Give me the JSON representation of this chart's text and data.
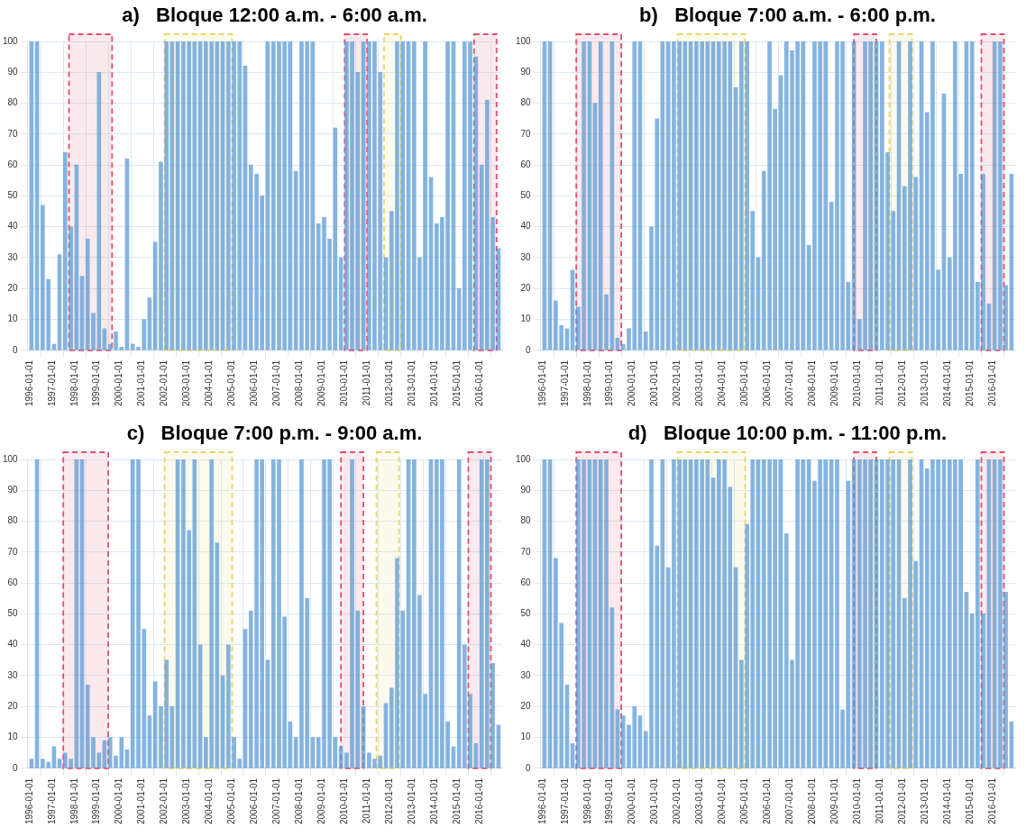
{
  "chart_data": [
    {
      "type": "bar",
      "title": "a)   Bloque 12:00 a.m. - 6:00 a.m.",
      "color": "#5b9bd5",
      "grid": true,
      "xlim": [
        "1995-12-01",
        "2016-12-31"
      ],
      "ylim": [
        0,
        100
      ],
      "yticks": [
        0,
        10,
        20,
        30,
        40,
        50,
        60,
        70,
        80,
        90,
        100
      ],
      "xticks": [
        "1996-01-01",
        "1997-01-01",
        "1998-01-01",
        "1999-01-01",
        "2000-01-01",
        "2001-01-01",
        "2002-01-01",
        "2003-01-01",
        "2004-01-01",
        "2005-01-01",
        "2006-01-01",
        "2007-01-01",
        "2008-01-01",
        "2009-01-01",
        "2010-01-01",
        "2011-01-01",
        "2012-01-01",
        "2013-01-01",
        "2014-01-01",
        "2015-01-01",
        "2016-01-01"
      ],
      "x": [
        "1996-02",
        "1996-05",
        "1996-08",
        "1996-11",
        "1997-02",
        "1997-05",
        "1997-08",
        "1997-11",
        "1998-02",
        "1998-05",
        "1998-08",
        "1998-11",
        "1999-02",
        "1999-05",
        "1999-08",
        "1999-11",
        "2000-02",
        "2000-05",
        "2000-08",
        "2000-11",
        "2001-02",
        "2001-05",
        "2001-08",
        "2001-11",
        "2002-02",
        "2002-05",
        "2002-08",
        "2002-11",
        "2003-02",
        "2003-05",
        "2003-08",
        "2003-11",
        "2004-02",
        "2004-05",
        "2004-08",
        "2004-11",
        "2005-02",
        "2005-05",
        "2005-08",
        "2005-11",
        "2006-02",
        "2006-05",
        "2006-08",
        "2006-11",
        "2007-02",
        "2007-05",
        "2007-08",
        "2007-11",
        "2008-02",
        "2008-05",
        "2008-08",
        "2008-11",
        "2009-02",
        "2009-05",
        "2009-08",
        "2009-11",
        "2010-02",
        "2010-05",
        "2010-08",
        "2010-11",
        "2011-02",
        "2011-05",
        "2011-08",
        "2011-11",
        "2012-02",
        "2012-05",
        "2012-08",
        "2012-11",
        "2013-02",
        "2013-05",
        "2013-08",
        "2013-11",
        "2014-02",
        "2014-05",
        "2014-08",
        "2014-11",
        "2015-02",
        "2015-05",
        "2015-08",
        "2015-11",
        "2016-02",
        "2016-05",
        "2016-08",
        "2016-11"
      ],
      "values": [
        100,
        100,
        47,
        23,
        2,
        31,
        64,
        40,
        60,
        24,
        36,
        12,
        90,
        7,
        2,
        6,
        1,
        62,
        2,
        1,
        10,
        17,
        35,
        61,
        100,
        100,
        100,
        100,
        100,
        100,
        100,
        100,
        100,
        100,
        100,
        100,
        100,
        100,
        92,
        60,
        57,
        50,
        100,
        100,
        100,
        100,
        100,
        58,
        100,
        100,
        100,
        41,
        43,
        36,
        72,
        30,
        100,
        100,
        90,
        100,
        100,
        100,
        90,
        30,
        45,
        100,
        100,
        100,
        100,
        30,
        100,
        56,
        41,
        43,
        100,
        100,
        20,
        100,
        100,
        95,
        60,
        81,
        43,
        33
      ],
      "bands": [
        {
          "axis": "x",
          "from": "1997-10-01",
          "to": "1999-09-01",
          "color": "#e0506a"
        },
        {
          "axis": "x",
          "from": "2002-01-01",
          "to": "2005-01-01",
          "color": "#e8d36a"
        },
        {
          "axis": "x",
          "from": "2010-01-01",
          "to": "2011-01-01",
          "color": "#e0506a"
        },
        {
          "axis": "x",
          "from": "2011-10-01",
          "to": "2012-07-01",
          "color": "#e8d36a"
        },
        {
          "axis": "x",
          "from": "2015-10-01",
          "to": "2016-10-01",
          "color": "#e0506a"
        }
      ]
    },
    {
      "type": "bar",
      "title": "b)   Bloque 7:00 a.m. - 6:00 p.m.",
      "color": "#5b9bd5",
      "grid": true,
      "xlim": [
        "1995-12-01",
        "2016-12-31"
      ],
      "ylim": [
        0,
        100
      ],
      "yticks": [
        0,
        10,
        20,
        30,
        40,
        50,
        60,
        70,
        80,
        90,
        100
      ],
      "xticks": [
        "1996-01-01",
        "1997-01-01",
        "1998-01-01",
        "1999-01-01",
        "2000-01-01",
        "2001-01-01",
        "2002-01-01",
        "2003-01-01",
        "2004-01-01",
        "2005-01-01",
        "2006-01-01",
        "2007-01-01",
        "2008-01-01",
        "2009-01-01",
        "2010-01-01",
        "2011-01-01",
        "2012-01-01",
        "2013-01-01",
        "2014-01-01",
        "2015-01-01",
        "2016-01-01"
      ],
      "x": [
        "1996-02",
        "1996-05",
        "1996-08",
        "1996-11",
        "1997-02",
        "1997-05",
        "1997-08",
        "1997-11",
        "1998-02",
        "1998-05",
        "1998-08",
        "1998-11",
        "1999-02",
        "1999-05",
        "1999-08",
        "1999-11",
        "2000-02",
        "2000-05",
        "2000-08",
        "2000-11",
        "2001-02",
        "2001-05",
        "2001-08",
        "2001-11",
        "2002-02",
        "2002-05",
        "2002-08",
        "2002-11",
        "2003-02",
        "2003-05",
        "2003-08",
        "2003-11",
        "2004-02",
        "2004-05",
        "2004-08",
        "2004-11",
        "2005-02",
        "2005-05",
        "2005-08",
        "2005-11",
        "2006-02",
        "2006-05",
        "2006-08",
        "2006-11",
        "2007-02",
        "2007-05",
        "2007-08",
        "2007-11",
        "2008-02",
        "2008-05",
        "2008-08",
        "2008-11",
        "2009-02",
        "2009-05",
        "2009-08",
        "2009-11",
        "2010-02",
        "2010-05",
        "2010-08",
        "2010-11",
        "2011-02",
        "2011-05",
        "2011-08",
        "2011-11",
        "2012-02",
        "2012-05",
        "2012-08",
        "2012-11",
        "2013-02",
        "2013-05",
        "2013-08",
        "2013-11",
        "2014-02",
        "2014-05",
        "2014-08",
        "2014-11",
        "2015-02",
        "2015-05",
        "2015-08",
        "2015-11",
        "2016-02",
        "2016-05",
        "2016-08",
        "2016-11"
      ],
      "values": [
        100,
        100,
        16,
        8,
        7,
        26,
        14,
        100,
        100,
        80,
        100,
        18,
        100,
        4,
        2,
        7,
        100,
        100,
        6,
        40,
        75,
        100,
        100,
        100,
        100,
        100,
        100,
        100,
        100,
        100,
        100,
        100,
        100,
        100,
        85,
        100,
        100,
        45,
        30,
        58,
        100,
        78,
        89,
        100,
        97,
        100,
        100,
        34,
        100,
        100,
        100,
        48,
        100,
        100,
        22,
        100,
        10,
        100,
        100,
        100,
        100,
        64,
        45,
        100,
        53,
        100,
        56,
        100,
        77,
        100,
        26,
        83,
        30,
        100,
        57,
        100,
        100,
        22,
        57,
        15,
        100,
        100,
        21,
        57
      ],
      "bands": [
        {
          "axis": "x",
          "from": "1997-07-01",
          "to": "1999-07-01",
          "color": "#e0506a"
        },
        {
          "axis": "x",
          "from": "2002-01-01",
          "to": "2005-01-01",
          "color": "#e8d36a"
        },
        {
          "axis": "x",
          "from": "2009-11-01",
          "to": "2010-11-01",
          "color": "#e0506a"
        },
        {
          "axis": "x",
          "from": "2011-06-01",
          "to": "2012-06-01",
          "color": "#e8d36a"
        },
        {
          "axis": "x",
          "from": "2015-07-01",
          "to": "2016-07-01",
          "color": "#e0506a"
        }
      ]
    },
    {
      "type": "bar",
      "title": "c)   Bloque 7:00 p.m. - 9:00 a.m.",
      "color": "#5b9bd5",
      "grid": true,
      "xlim": [
        "1995-12-01",
        "2016-12-31"
      ],
      "ylim": [
        0,
        100
      ],
      "yticks": [
        0,
        10,
        20,
        30,
        40,
        50,
        60,
        70,
        80,
        90,
        100
      ],
      "xticks": [
        "1996-01-01",
        "1997-01-01",
        "1998-01-01",
        "1999-01-01",
        "2000-01-01",
        "2001-01-01",
        "2002-01-01",
        "2003-01-01",
        "2004-01-01",
        "2005-01-01",
        "2006-01-01",
        "2007-01-01",
        "2008-01-01",
        "2009-01-01",
        "2010-01-01",
        "2011-01-01",
        "2012-01-01",
        "2013-01-01",
        "2014-01-01",
        "2015-01-01",
        "2016-01-01"
      ],
      "x": [
        "1996-02",
        "1996-05",
        "1996-08",
        "1996-11",
        "1997-02",
        "1997-05",
        "1997-08",
        "1997-11",
        "1998-02",
        "1998-05",
        "1998-08",
        "1998-11",
        "1999-02",
        "1999-05",
        "1999-08",
        "1999-11",
        "2000-02",
        "2000-05",
        "2000-08",
        "2000-11",
        "2001-02",
        "2001-05",
        "2001-08",
        "2001-11",
        "2002-02",
        "2002-05",
        "2002-08",
        "2002-11",
        "2003-02",
        "2003-05",
        "2003-08",
        "2003-11",
        "2004-02",
        "2004-05",
        "2004-08",
        "2004-11",
        "2005-02",
        "2005-05",
        "2005-08",
        "2005-11",
        "2006-02",
        "2006-05",
        "2006-08",
        "2006-11",
        "2007-02",
        "2007-05",
        "2007-08",
        "2007-11",
        "2008-02",
        "2008-05",
        "2008-08",
        "2008-11",
        "2009-02",
        "2009-05",
        "2009-08",
        "2009-11",
        "2010-02",
        "2010-05",
        "2010-08",
        "2010-11",
        "2011-02",
        "2011-05",
        "2011-08",
        "2011-11",
        "2012-02",
        "2012-05",
        "2012-08",
        "2012-11",
        "2013-02",
        "2013-05",
        "2013-08",
        "2013-11",
        "2014-02",
        "2014-05",
        "2014-08",
        "2014-11",
        "2015-02",
        "2015-05",
        "2015-08",
        "2015-11",
        "2016-02",
        "2016-05",
        "2016-08",
        "2016-11"
      ],
      "values": [
        3,
        100,
        3,
        2,
        7,
        3,
        5,
        3,
        100,
        100,
        27,
        10,
        5,
        9,
        10,
        4,
        10,
        6,
        100,
        100,
        45,
        17,
        28,
        20,
        35,
        20,
        100,
        100,
        77,
        100,
        40,
        10,
        100,
        73,
        30,
        40,
        10,
        3,
        45,
        51,
        100,
        100,
        35,
        100,
        100,
        49,
        15,
        10,
        100,
        55,
        10,
        10,
        100,
        100,
        10,
        7,
        5,
        100,
        51,
        20,
        5,
        3,
        4,
        21,
        26,
        68,
        51,
        100,
        100,
        56,
        24,
        100,
        100,
        100,
        15,
        7,
        100,
        40,
        24,
        8,
        100,
        100,
        34,
        14
      ],
      "bands": [
        {
          "axis": "x",
          "from": "1997-07-01",
          "to": "1999-07-01",
          "color": "#e0506a"
        },
        {
          "axis": "x",
          "from": "2002-01-01",
          "to": "2005-01-01",
          "color": "#e8d36a"
        },
        {
          "axis": "x",
          "from": "2009-11-01",
          "to": "2010-11-01",
          "color": "#e0506a"
        },
        {
          "axis": "x",
          "from": "2011-06-01",
          "to": "2012-06-01",
          "color": "#e8d36a"
        },
        {
          "axis": "x",
          "from": "2015-07-01",
          "to": "2016-07-01",
          "color": "#e0506a"
        }
      ]
    },
    {
      "type": "bar",
      "title": "d)   Bloque 10:00 p.m. - 11:00 p.m.",
      "color": "#5b9bd5",
      "grid": true,
      "xlim": [
        "1995-12-01",
        "2016-12-31"
      ],
      "ylim": [
        0,
        100
      ],
      "yticks": [
        0,
        10,
        20,
        30,
        40,
        50,
        60,
        70,
        80,
        90,
        100
      ],
      "xticks": [
        "1996-01-01",
        "1997-01-01",
        "1998-01-01",
        "1999-01-01",
        "2000-01-01",
        "2001-01-01",
        "2002-01-01",
        "2003-01-01",
        "2004-01-01",
        "2005-01-01",
        "2006-01-01",
        "2007-01-01",
        "2008-01-01",
        "2009-01-01",
        "2010-01-01",
        "2011-01-01",
        "2012-01-01",
        "2013-01-01",
        "2014-01-01",
        "2015-01-01",
        "2016-01-01"
      ],
      "x": [
        "1996-02",
        "1996-05",
        "1996-08",
        "1996-11",
        "1997-02",
        "1997-05",
        "1997-08",
        "1997-11",
        "1998-02",
        "1998-05",
        "1998-08",
        "1998-11",
        "1999-02",
        "1999-05",
        "1999-08",
        "1999-11",
        "2000-02",
        "2000-05",
        "2000-08",
        "2000-11",
        "2001-02",
        "2001-05",
        "2001-08",
        "2001-11",
        "2002-02",
        "2002-05",
        "2002-08",
        "2002-11",
        "2003-02",
        "2003-05",
        "2003-08",
        "2003-11",
        "2004-02",
        "2004-05",
        "2004-08",
        "2004-11",
        "2005-02",
        "2005-05",
        "2005-08",
        "2005-11",
        "2006-02",
        "2006-05",
        "2006-08",
        "2006-11",
        "2007-02",
        "2007-05",
        "2007-08",
        "2007-11",
        "2008-02",
        "2008-05",
        "2008-08",
        "2008-11",
        "2009-02",
        "2009-05",
        "2009-08",
        "2009-11",
        "2010-02",
        "2010-05",
        "2010-08",
        "2010-11",
        "2011-02",
        "2011-05",
        "2011-08",
        "2011-11",
        "2012-02",
        "2012-05",
        "2012-08",
        "2012-11",
        "2013-02",
        "2013-05",
        "2013-08",
        "2013-11",
        "2014-02",
        "2014-05",
        "2014-08",
        "2014-11",
        "2015-02",
        "2015-05",
        "2015-08",
        "2015-11",
        "2016-02",
        "2016-05",
        "2016-08",
        "2016-11"
      ],
      "values": [
        100,
        100,
        68,
        47,
        27,
        8,
        100,
        100,
        100,
        100,
        100,
        100,
        52,
        19,
        17,
        14,
        20,
        17,
        12,
        100,
        72,
        100,
        65,
        100,
        100,
        100,
        100,
        100,
        100,
        100,
        94,
        100,
        100,
        91,
        65,
        35,
        79,
        100,
        100,
        100,
        100,
        100,
        100,
        76,
        35,
        100,
        100,
        100,
        93,
        100,
        100,
        100,
        100,
        19,
        93,
        100,
        100,
        100,
        100,
        100,
        100,
        100,
        100,
        100,
        55,
        100,
        67,
        100,
        97,
        100,
        100,
        100,
        100,
        100,
        100,
        57,
        50,
        100,
        50,
        100,
        100,
        100,
        57,
        15
      ],
      "bands": [
        {
          "axis": "x",
          "from": "1997-07-01",
          "to": "1999-07-01",
          "color": "#e0506a"
        },
        {
          "axis": "x",
          "from": "2002-01-01",
          "to": "2005-01-01",
          "color": "#e8d36a"
        },
        {
          "axis": "x",
          "from": "2009-11-01",
          "to": "2010-11-01",
          "color": "#e0506a"
        },
        {
          "axis": "x",
          "from": "2011-06-01",
          "to": "2012-06-01",
          "color": "#e8d36a"
        },
        {
          "axis": "x",
          "from": "2015-07-01",
          "to": "2016-07-01",
          "color": "#e0506a"
        }
      ]
    }
  ]
}
